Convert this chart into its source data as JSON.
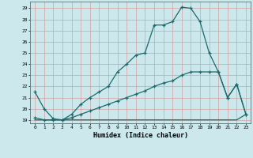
{
  "xlabel": "Humidex (Indice chaleur)",
  "bg_color": "#cce8ed",
  "grid_color": "#b0d0d8",
  "line_color": "#1a6b6b",
  "xlim": [
    -0.5,
    23.5
  ],
  "ylim": [
    18.7,
    29.6
  ],
  "yticks": [
    19,
    20,
    21,
    22,
    23,
    24,
    25,
    26,
    27,
    28,
    29
  ],
  "xticks": [
    0,
    1,
    2,
    3,
    4,
    5,
    6,
    7,
    8,
    9,
    10,
    11,
    12,
    13,
    14,
    15,
    16,
    17,
    18,
    19,
    20,
    21,
    22,
    23
  ],
  "line1_x": [
    0,
    1,
    2,
    3,
    4,
    5,
    6,
    7,
    8,
    9,
    10,
    11,
    12,
    13,
    14,
    15,
    16,
    17,
    18,
    19,
    20,
    21,
    22,
    23
  ],
  "line1_y": [
    21.5,
    20.0,
    19.1,
    19.0,
    19.5,
    20.4,
    21.0,
    21.5,
    22.0,
    23.3,
    24.0,
    24.8,
    25.0,
    27.5,
    27.5,
    27.8,
    29.1,
    29.0,
    27.8,
    25.0,
    23.3,
    21.0,
    22.2,
    19.5
  ],
  "line2_x": [
    0,
    1,
    2,
    3,
    4,
    5,
    6,
    7,
    8,
    9,
    10,
    11,
    12,
    13,
    14,
    15,
    16,
    17,
    18,
    19,
    20,
    21,
    22,
    23
  ],
  "line2_y": [
    19.2,
    19.0,
    19.0,
    19.0,
    19.2,
    19.5,
    19.8,
    20.1,
    20.4,
    20.7,
    21.0,
    21.3,
    21.6,
    22.0,
    22.3,
    22.5,
    23.0,
    23.3,
    23.3,
    23.3,
    23.3,
    21.0,
    22.2,
    19.5
  ],
  "line3_x": [
    0,
    1,
    2,
    3,
    4,
    5,
    6,
    7,
    8,
    9,
    10,
    11,
    12,
    13,
    14,
    15,
    16,
    17,
    18,
    19,
    20,
    21,
    22,
    23
  ],
  "line3_y": [
    19.0,
    19.0,
    19.0,
    19.0,
    19.0,
    19.0,
    19.0,
    19.0,
    19.0,
    19.0,
    19.0,
    19.0,
    19.0,
    19.0,
    19.0,
    19.0,
    19.0,
    19.0,
    19.0,
    19.0,
    19.0,
    19.0,
    19.0,
    19.5
  ]
}
